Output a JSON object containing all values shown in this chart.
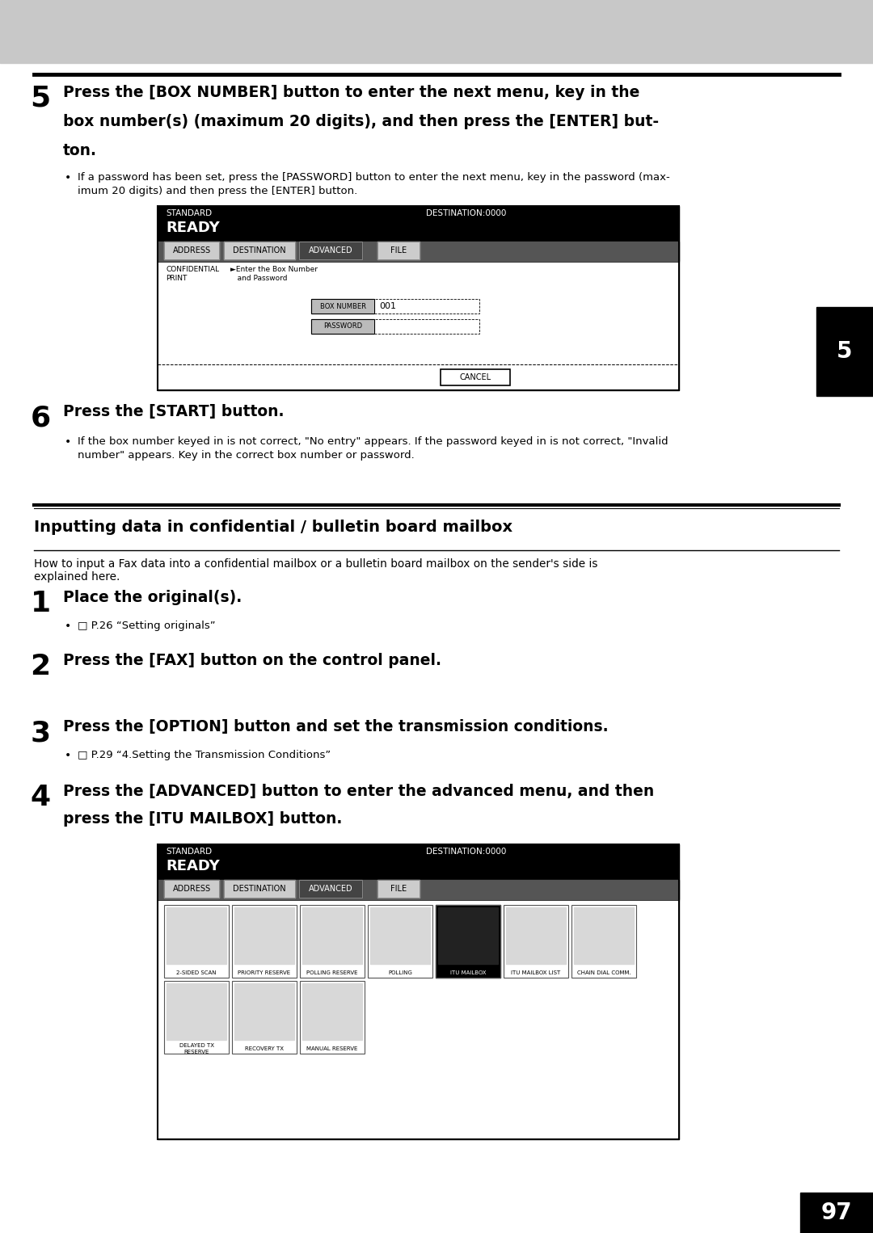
{
  "bg_color": "#ffffff",
  "header_gray": "#c8c8c8",
  "page_number": "97",
  "chapter_number": "5",
  "step5_number": "5",
  "step5_text_line1": "Press the [BOX NUMBER] button to enter the next menu, key in the",
  "step5_text_line2": "box number(s) (maximum 20 digits), and then press the [ENTER] but-",
  "step5_text_line3": "ton.",
  "step5_bullet1": "If a password has been set, press the [PASSWORD] button to enter the next menu, key in the password (max-",
  "step5_bullet2": "imum 20 digits) and then press the [ENTER] button.",
  "step6_number": "6",
  "step6_text": "Press the [START] button.",
  "step6_bullet1": "If the box number keyed in is not correct, \"No entry\" appears. If the password keyed in is not correct, \"Invalid",
  "step6_bullet2": "number\" appears. Key in the correct box number or password.",
  "section_title": "Inputting data in confidential / bulletin board mailbox",
  "section_intro1": "How to input a Fax data into a confidential mailbox or a bulletin board mailbox on the sender's side is",
  "section_intro2": "explained here.",
  "step1_number": "1",
  "step1_text": "Place the original(s).",
  "step1_bullet": "P.26 “Setting originals”",
  "step2_number": "2",
  "step2_text": "Press the [FAX] button on the control panel.",
  "step3_number": "3",
  "step3_text": "Press the [OPTION] button and set the transmission conditions.",
  "step3_bullet": "P.29 “4.Setting the Transmission Conditions”",
  "step4_number": "4",
  "step4_text_line1": "Press the [ADVANCED] button to enter the advanced menu, and then",
  "step4_text_line2": "press the [ITU MAILBOX] button.",
  "screen1_tabs": [
    "ADDRESS",
    "DESTINATION",
    "ADVANCED",
    "FILE"
  ],
  "screen2_tabs": [
    "ADDRESS",
    "DESTINATION",
    "ADVANCED",
    "FILE"
  ],
  "icon_labels_row1": [
    "2-SIDED SCAN",
    "PRIORITY RESERVE",
    "POLLING RESERVE",
    "POLLING",
    "ITU MAILBOX",
    "ITU MAILBOX LIST",
    "CHAIN DIAL COMM."
  ],
  "icon_labels_row2": [
    "DELAYED TX\nRESERVE",
    "RECOVERY TX",
    "MANUAL RESERVE"
  ]
}
